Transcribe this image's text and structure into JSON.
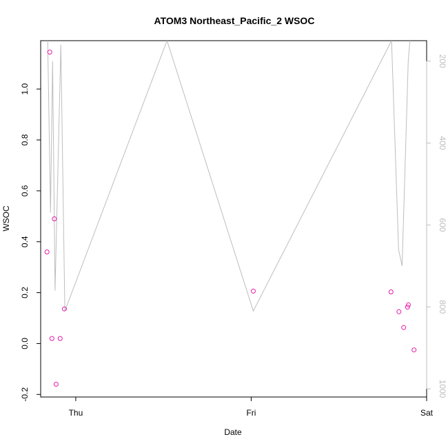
{
  "chart_data": {
    "type": "scatter",
    "title": "ATOM3 Northeast_Pacific_2 WSOC",
    "xlabel": "Date",
    "ylabel": "WSOC",
    "x_ticks": [
      "Thu",
      "Fri",
      "Sat"
    ],
    "x_tick_days": [
      1.0,
      2.0,
      3.0
    ],
    "x_range_days": [
      0.8,
      3.0
    ],
    "y_range": [
      -0.21,
      1.19
    ],
    "y_ticks": [
      -0.2,
      0.0,
      0.2,
      0.4,
      0.6,
      0.8,
      1.0
    ],
    "y_tick_labels": [
      "-0.2",
      "0.0",
      "0.2",
      "0.4",
      "0.6",
      "0.8",
      "1.0"
    ],
    "y2_range": [
      150,
      1020
    ],
    "y2_ticks": [
      200,
      400,
      600,
      800,
      1000
    ],
    "y2_tick_labels": [
      "200",
      "400",
      "600",
      "800",
      "1000"
    ],
    "series": [
      {
        "type": "scatter",
        "color": "#e61aa6",
        "x_days": [
          0.836,
          0.852,
          0.864,
          0.878,
          0.888,
          0.911,
          0.935,
          2.012,
          2.797,
          2.842,
          2.869,
          2.891,
          2.896,
          2.928
        ],
        "values": [
          0.36,
          1.145,
          0.02,
          0.49,
          -0.16,
          0.02,
          0.136,
          0.206,
          0.203,
          0.125,
          0.063,
          0.143,
          0.152,
          -0.025
        ]
      },
      {
        "type": "line",
        "color": "#bdbdbd",
        "axis": "right",
        "x_days": [
          0.84,
          0.856,
          0.868,
          0.882,
          0.915,
          0.938,
          1.52,
          2.012,
          2.8,
          2.84,
          2.86,
          2.895,
          2.905
        ],
        "values": [
          150,
          570,
          200,
          760,
          160,
          810,
          150,
          810,
          150,
          660,
          700,
          200,
          150
        ]
      }
    ],
    "grid": false,
    "legend": "none"
  }
}
